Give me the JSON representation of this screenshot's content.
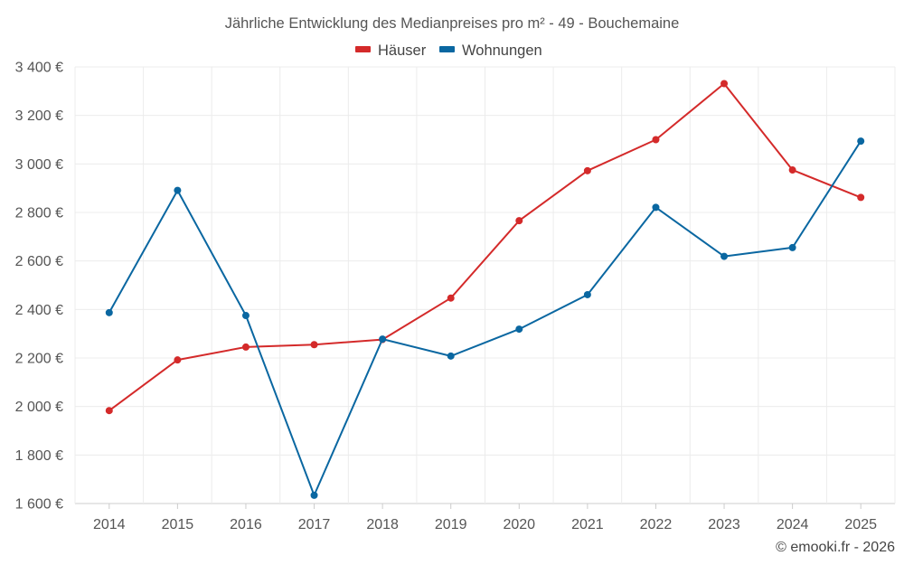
{
  "chart_data": {
    "type": "line",
    "title": "Jährliche Entwicklung des Medianpreises pro m² - 49 - Bouchemaine",
    "categories": [
      "2014",
      "2015",
      "2016",
      "2017",
      "2018",
      "2019",
      "2020",
      "2021",
      "2022",
      "2023",
      "2024",
      "2025"
    ],
    "series": [
      {
        "name": "Häuser",
        "color": "#d42a2a",
        "values": [
          1983,
          2192,
          2245,
          2255,
          2276,
          2447,
          2766,
          2972,
          3100,
          3331,
          2975,
          2862
        ]
      },
      {
        "name": "Wohnungen",
        "color": "#0a67a1",
        "values": [
          2387,
          2891,
          2375,
          1634,
          2278,
          2208,
          2319,
          2461,
          2821,
          2619,
          2655,
          3094
        ]
      }
    ],
    "ylim": [
      1600,
      3400
    ],
    "yticks": [
      1600,
      1800,
      2000,
      2200,
      2400,
      2600,
      2800,
      3000,
      3200,
      3400
    ],
    "ytick_labels": [
      "1 600 €",
      "1 800 €",
      "2 000 €",
      "2 200 €",
      "2 400 €",
      "2 600 €",
      "2 800 €",
      "3 000 €",
      "3 200 €",
      "3 400 €"
    ],
    "xlabel": "",
    "ylabel": "",
    "grid": true,
    "legend": "top-center",
    "credit": "© emooki.fr - 2026"
  }
}
